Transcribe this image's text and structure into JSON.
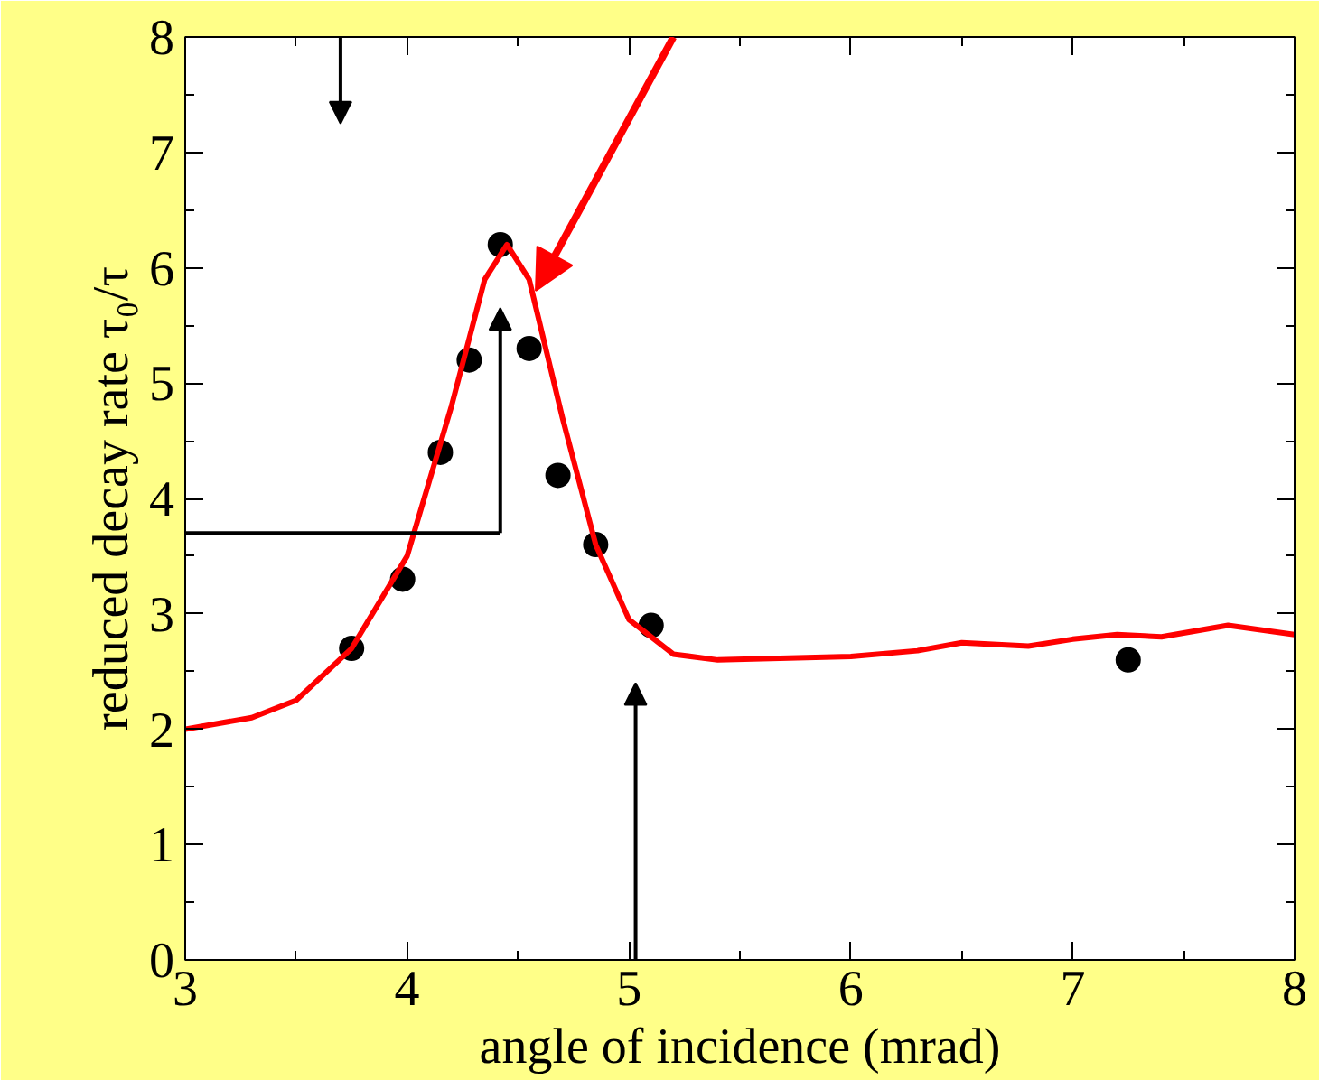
{
  "chart_data": {
    "type": "scatter",
    "xlabel": "angle of incidence (mrad)",
    "ylabel": "reduced decay rate τ₀/τ",
    "xlim": [
      3,
      8
    ],
    "ylim": [
      0,
      8
    ],
    "xticks": [
      3,
      4,
      5,
      6,
      7,
      8
    ],
    "yticks": [
      0,
      1,
      2,
      3,
      4,
      5,
      6,
      7,
      8
    ],
    "grid": false,
    "legend": false,
    "marker": "circle",
    "series": [
      {
        "color": "#000000",
        "x": [
          3.75,
          3.98,
          4.15,
          4.28,
          4.42,
          4.55,
          4.68,
          4.85,
          5.1,
          7.25
        ],
        "values": [
          2.7,
          3.3,
          4.4,
          5.2,
          6.2,
          5.3,
          4.2,
          3.6,
          2.9,
          2.6
        ]
      },
      {
        "type": "line",
        "marker": "none",
        "color": "#ff0000",
        "line_style": "solid",
        "x": [
          3.0,
          3.3,
          3.5,
          3.75,
          4.0,
          4.2,
          4.35,
          4.45,
          4.55,
          4.7,
          4.85,
          5.0,
          5.2,
          5.4,
          5.8,
          6.0,
          6.3,
          6.5,
          6.8,
          7.0,
          7.2,
          7.4,
          7.7,
          8.0
        ],
        "values": [
          2.0,
          2.1,
          2.25,
          2.7,
          3.5,
          4.8,
          5.9,
          6.2,
          5.9,
          4.7,
          3.6,
          2.95,
          2.65,
          2.6,
          2.62,
          2.63,
          2.68,
          2.75,
          2.72,
          2.78,
          2.82,
          2.8,
          2.9,
          2.82
        ]
      }
    ]
  }
}
